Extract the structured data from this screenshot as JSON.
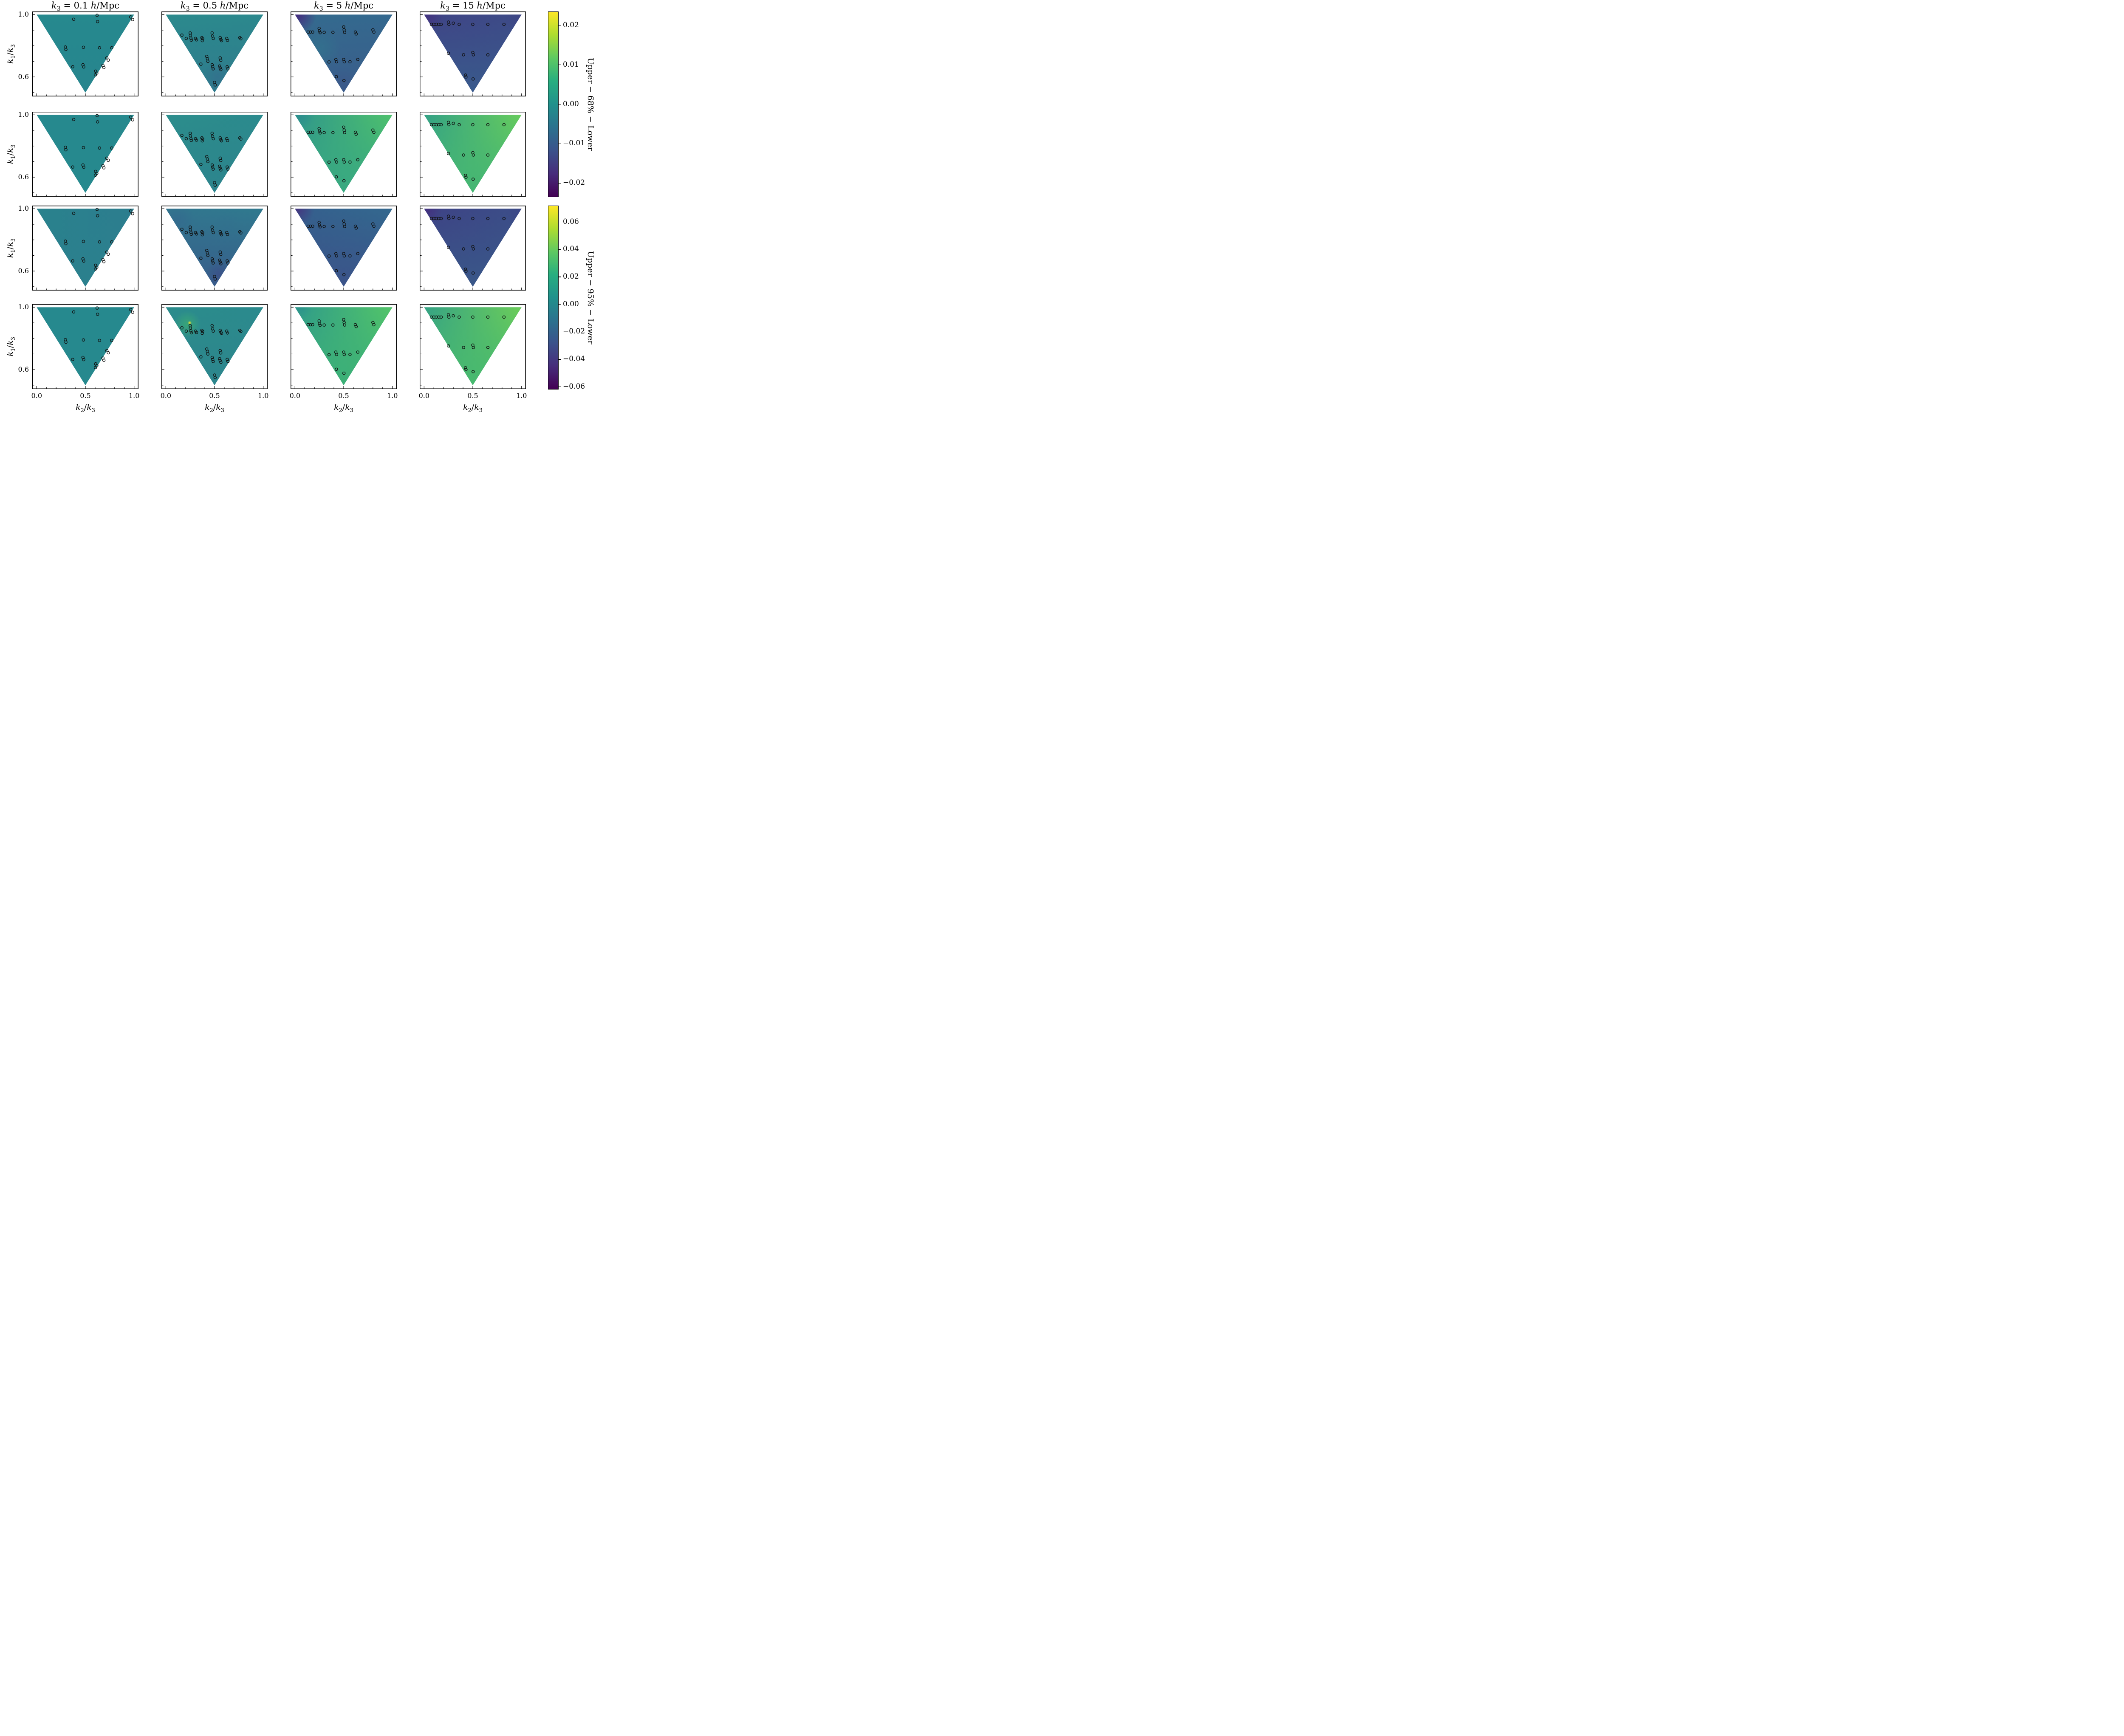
{
  "chart_data": {
    "type": "heatmap",
    "subtype": "triangle-tripcolor-grid-with-scatter",
    "grid": {
      "rows": 4,
      "cols": 4
    },
    "column_titles": [
      "k_3 = 0.1 h/Mpc",
      "k_3 = 0.5 h/Mpc",
      "k_3 = 5 h/Mpc",
      "k_3 = 15 h/Mpc"
    ],
    "xlabel": "k_2/k_3",
    "ylabel": "k_1/k_3",
    "xlim": [
      -0.045,
      1.045
    ],
    "ylim": [
      0.475,
      1.02
    ],
    "x_ticks": {
      "labels": [
        "0.0",
        "0.5",
        "1.0"
      ],
      "values": [
        0,
        0.5,
        1.0
      ],
      "minor": [
        0.1,
        0.2,
        0.3,
        0.4,
        0.6,
        0.7,
        0.8,
        0.9
      ]
    },
    "y_ticks": {
      "labels": [
        "1.0",
        "0.6"
      ],
      "values": [
        1.0,
        0.6
      ],
      "minor": [
        0.9,
        0.8,
        0.7,
        0.5
      ]
    },
    "triangle_vertices": [
      [
        0,
        1
      ],
      [
        1,
        1
      ],
      [
        0.5,
        0.5
      ]
    ],
    "viridis_top_to_bottom": [
      "#fde725",
      "#addc30",
      "#5ec962",
      "#28ae80",
      "#21918c",
      "#2c728e",
      "#3b528b",
      "#472d7b",
      "#440154"
    ],
    "colorbars": [
      {
        "label": "Upper − 68% − Lower",
        "ticks": [
          "0.02",
          "0.01",
          "0.00",
          "−0.01",
          "−0.02"
        ],
        "tick_values": [
          0.02,
          0.01,
          0.0,
          -0.01,
          -0.02
        ],
        "vmax": 0.0235,
        "vmin": -0.0235,
        "rows_covered": [
          0,
          1
        ]
      },
      {
        "label": "Upper − 95% − Lower",
        "ticks": [
          "0.06",
          "0.04",
          "0.02",
          "0.00",
          "−0.02",
          "−0.04",
          "−0.06"
        ],
        "tick_values": [
          0.06,
          0.04,
          0.02,
          0.0,
          -0.02,
          -0.04,
          -0.06
        ],
        "vmax": 0.072,
        "vmin": -0.062,
        "rows_covered": [
          2,
          3
        ]
      }
    ],
    "scatter_by_column": [
      [
        [
          0.38,
          0.97
        ],
        [
          0.62,
          0.995
        ],
        [
          0.625,
          0.955
        ],
        [
          0.965,
          0.985
        ],
        [
          0.985,
          0.968
        ],
        [
          0.295,
          0.792
        ],
        [
          0.3,
          0.776
        ],
        [
          0.48,
          0.79
        ],
        [
          0.645,
          0.787
        ],
        [
          0.77,
          0.787
        ],
        [
          0.72,
          0.722
        ],
        [
          0.735,
          0.708
        ],
        [
          0.68,
          0.674
        ],
        [
          0.69,
          0.66
        ],
        [
          0.37,
          0.665
        ],
        [
          0.475,
          0.678
        ],
        [
          0.483,
          0.664
        ],
        [
          0.605,
          0.637
        ],
        [
          0.617,
          0.625
        ],
        [
          0.603,
          0.613
        ]
      ],
      [
        [
          0.165,
          0.868
        ],
        [
          0.21,
          0.847
        ],
        [
          0.25,
          0.882
        ],
        [
          0.252,
          0.866
        ],
        [
          0.258,
          0.848
        ],
        [
          0.262,
          0.836
        ],
        [
          0.305,
          0.847
        ],
        [
          0.315,
          0.838
        ],
        [
          0.37,
          0.852
        ],
        [
          0.378,
          0.845
        ],
        [
          0.374,
          0.833
        ],
        [
          0.475,
          0.882
        ],
        [
          0.48,
          0.862
        ],
        [
          0.487,
          0.847
        ],
        [
          0.558,
          0.852
        ],
        [
          0.565,
          0.84
        ],
        [
          0.572,
          0.833
        ],
        [
          0.625,
          0.847
        ],
        [
          0.633,
          0.835
        ],
        [
          0.76,
          0.852
        ],
        [
          0.77,
          0.845
        ],
        [
          0.36,
          0.682
        ],
        [
          0.42,
          0.732
        ],
        [
          0.427,
          0.717
        ],
        [
          0.432,
          0.7
        ],
        [
          0.476,
          0.678
        ],
        [
          0.481,
          0.665
        ],
        [
          0.486,
          0.652
        ],
        [
          0.558,
          0.722
        ],
        [
          0.564,
          0.707
        ],
        [
          0.552,
          0.67
        ],
        [
          0.558,
          0.658
        ],
        [
          0.565,
          0.647
        ],
        [
          0.63,
          0.665
        ],
        [
          0.638,
          0.652
        ],
        [
          0.5,
          0.565
        ],
        [
          0.506,
          0.549
        ]
      ],
      [
        [
          0.135,
          0.888
        ],
        [
          0.158,
          0.888
        ],
        [
          0.182,
          0.888
        ],
        [
          0.248,
          0.912
        ],
        [
          0.252,
          0.895
        ],
        [
          0.258,
          0.884
        ],
        [
          0.3,
          0.886
        ],
        [
          0.39,
          0.886
        ],
        [
          0.5,
          0.921
        ],
        [
          0.505,
          0.902
        ],
        [
          0.51,
          0.886
        ],
        [
          0.62,
          0.888
        ],
        [
          0.628,
          0.876
        ],
        [
          0.8,
          0.902
        ],
        [
          0.81,
          0.888
        ],
        [
          0.35,
          0.696
        ],
        [
          0.42,
          0.712
        ],
        [
          0.427,
          0.697
        ],
        [
          0.5,
          0.712
        ],
        [
          0.506,
          0.697
        ],
        [
          0.565,
          0.697
        ],
        [
          0.645,
          0.712
        ],
        [
          0.425,
          0.602
        ],
        [
          0.503,
          0.577
        ]
      ],
      [
        [
          0.075,
          0.937
        ],
        [
          0.1,
          0.937
        ],
        [
          0.125,
          0.937
        ],
        [
          0.15,
          0.937
        ],
        [
          0.175,
          0.937
        ],
        [
          0.25,
          0.952
        ],
        [
          0.255,
          0.937
        ],
        [
          0.3,
          0.945
        ],
        [
          0.36,
          0.937
        ],
        [
          0.5,
          0.937
        ],
        [
          0.655,
          0.937
        ],
        [
          0.82,
          0.937
        ],
        [
          0.25,
          0.752
        ],
        [
          0.405,
          0.742
        ],
        [
          0.5,
          0.757
        ],
        [
          0.506,
          0.742
        ],
        [
          0.655,
          0.742
        ],
        [
          0.425,
          0.612
        ],
        [
          0.43,
          0.6
        ],
        [
          0.503,
          0.587
        ]
      ]
    ],
    "panels": [
      [
        {
          "tl": "#26898e",
          "tr": "#26898e",
          "bottom": "#27858e",
          "blobs": []
        },
        {
          "tl": "#2b8a8d",
          "tr": "#2c888d",
          "bottom": "#2f7b8d",
          "blobs": [
            {
              "x": 0.53,
              "y": 0.6,
              "r": 0.16,
              "color": "#35698d",
              "a": 0.55
            }
          ]
        },
        {
          "tl": "#346b8e",
          "tr": "#34688e",
          "bottom": "#3a5d8b",
          "blobs": [
            {
              "x": 0.02,
              "y": 1.0,
              "r": 0.2,
              "color": "#46277d",
              "a": 0.95
            },
            {
              "x": 0.25,
              "y": 0.78,
              "r": 0.22,
              "color": "#2f7b8e",
              "a": 0.5
            },
            {
              "x": 0.5,
              "y": 0.55,
              "r": 0.18,
              "color": "#3b568a",
              "a": 0.6
            }
          ]
        },
        {
          "tl": "#3f4486",
          "tr": "#3d4b87",
          "bottom": "#395a8c",
          "blobs": [
            {
              "x": 0.04,
              "y": 0.99,
              "r": 0.16,
              "color": "#44307f",
              "a": 0.8
            },
            {
              "x": 1.0,
              "y": 0.97,
              "r": 0.18,
              "color": "#3f4185",
              "a": 0.6
            }
          ]
        }
      ],
      [
        {
          "tl": "#26898e",
          "tr": "#26898e",
          "bottom": "#26898e",
          "blobs": []
        },
        {
          "tl": "#2c8d8c",
          "tr": "#2b8a8d",
          "bottom": "#2d848d",
          "blobs": []
        },
        {
          "tl": "#2f958c",
          "tr": "#4ec16c",
          "bottom": "#38a981",
          "blobs": [
            {
              "x": 0.05,
              "y": 1.0,
              "r": 0.15,
              "color": "#2a8a8e",
              "a": 0.7
            }
          ]
        },
        {
          "tl": "#33a186",
          "tr": "#67cc5c",
          "bottom": "#45b673",
          "blobs": []
        }
      ],
      [
        {
          "tl": "#2a828d",
          "tr": "#2c7d8e",
          "bottom": "#2b808d",
          "blobs": []
        },
        {
          "tl": "#31768e",
          "tr": "#30798e",
          "bottom": "#385d8b",
          "blobs": [
            {
              "x": 0.12,
              "y": 0.93,
              "r": 0.18,
              "color": "#34678e",
              "a": 0.6
            },
            {
              "x": 0.55,
              "y": 0.58,
              "r": 0.14,
              "color": "#3c4e88",
              "a": 0.75
            },
            {
              "x": 0.62,
              "y": 0.88,
              "r": 0.15,
              "color": "#33708e",
              "a": 0.5
            }
          ]
        },
        {
          "tl": "#355f8d",
          "tr": "#33688e",
          "bottom": "#3b5389",
          "blobs": [
            {
              "x": 0.02,
              "y": 1.0,
              "r": 0.18,
              "color": "#46317e",
              "a": 0.9
            }
          ]
        },
        {
          "tl": "#3e4285",
          "tr": "#3b4e88",
          "bottom": "#395788",
          "blobs": [
            {
              "x": 0.04,
              "y": 0.99,
              "r": 0.14,
              "color": "#442d7e",
              "a": 0.75
            },
            {
              "x": 1.0,
              "y": 0.97,
              "r": 0.16,
              "color": "#3e4086",
              "a": 0.55
            }
          ]
        }
      ],
      [
        {
          "tl": "#26898e",
          "tr": "#26898e",
          "bottom": "#26898e",
          "blobs": []
        },
        {
          "tl": "#2b8c8c",
          "tr": "#2b8a8d",
          "bottom": "#2d868d",
          "blobs": [
            {
              "x": 0.22,
              "y": 0.89,
              "r": 0.14,
              "color": "#3fb36e",
              "a": 0.65
            },
            {
              "x": 0.245,
              "y": 0.9,
              "r": 0.02,
              "color": "#fde725",
              "a": 1
            }
          ]
        },
        {
          "tl": "#2e9a8b",
          "tr": "#53c568",
          "bottom": "#3cb077",
          "blobs": [
            {
              "x": 0.05,
              "y": 1.0,
              "r": 0.13,
              "color": "#2a8e8d",
              "a": 0.6
            }
          ]
        },
        {
          "tl": "#35a285",
          "tr": "#6ccd59",
          "bottom": "#47b96f",
          "blobs": []
        }
      ]
    ]
  }
}
